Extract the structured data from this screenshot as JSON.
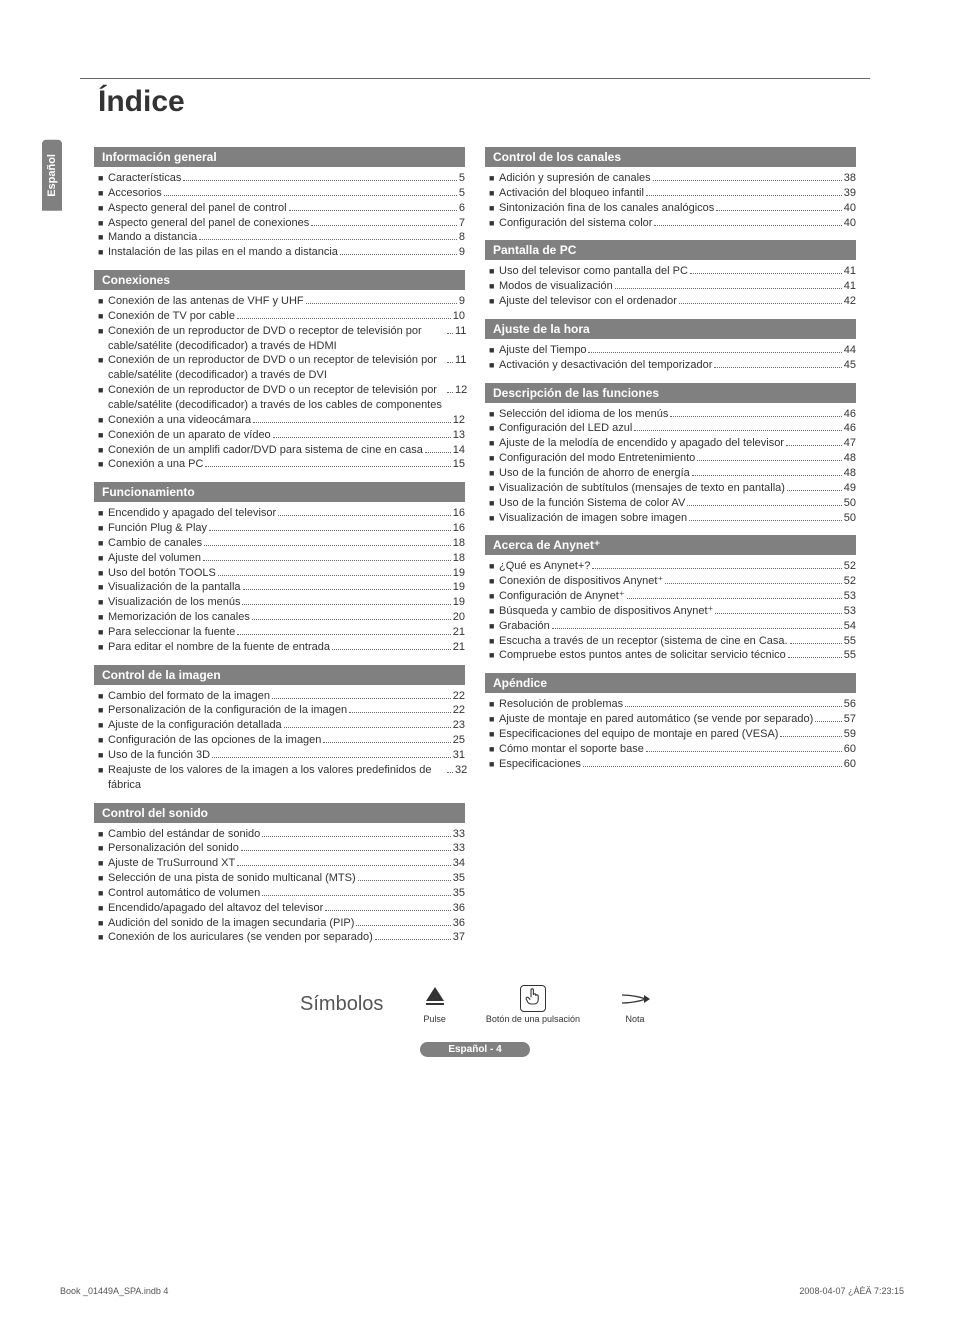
{
  "lang_tab": "Español",
  "title": "Índice",
  "colors": {
    "header_bg": "#808080",
    "header_fg": "#ffffff",
    "text": "#333333",
    "background": "#ffffff"
  },
  "left_sections": [
    {
      "title": "Información general",
      "items": [
        {
          "label": "Características",
          "page": "5"
        },
        {
          "label": "Accesorios",
          "page": "5"
        },
        {
          "label": "Aspecto general del panel de control",
          "page": "6"
        },
        {
          "label": "Aspecto general del panel de conexiones",
          "page": "7"
        },
        {
          "label": "Mando a distancia",
          "page": "8"
        },
        {
          "label": "Instalación de las pilas en el mando a distancia",
          "page": "9"
        }
      ]
    },
    {
      "title": "Conexiones",
      "items": [
        {
          "label": "Conexión de las antenas de VHF y UHF",
          "page": "9"
        },
        {
          "label": "Conexión de TV por cable",
          "page": "10"
        },
        {
          "label": "Conexión de un reproductor de DVD o receptor de televisión por cable/satélite (decodificador) a través de HDMI",
          "page": "11"
        },
        {
          "label": "Conexión de un reproductor de DVD o un receptor de televisión por cable/satélite (decodificador) a través de DVI",
          "page": "11"
        },
        {
          "label": "Conexión de un reproductor de DVD o un receptor de televisión por cable/satélite (decodificador) a través de los cables de componentes",
          "page": "12"
        },
        {
          "label": "Conexión a una videocámara",
          "page": "12"
        },
        {
          "label": "Conexión de un aparato de vídeo",
          "page": "13"
        },
        {
          "label": "Conexión de un amplifi cador/DVD para sistema de cine en casa",
          "page": "14"
        },
        {
          "label": "Conexión a una PC",
          "page": "15"
        }
      ]
    },
    {
      "title": "Funcionamiento",
      "items": [
        {
          "label": "Encendido y apagado del televisor",
          "page": "16"
        },
        {
          "label": "Función Plug & Play",
          "page": "16"
        },
        {
          "label": "Cambio de canales",
          "page": "18"
        },
        {
          "label": "Ajuste del volumen",
          "page": "18"
        },
        {
          "label": "Uso del botón TOOLS",
          "page": "19"
        },
        {
          "label": "Visualización de la pantalla",
          "page": "19"
        },
        {
          "label": "Visualización de los menús",
          "page": "19"
        },
        {
          "label": "Memorización de los canales",
          "page": "20"
        },
        {
          "label": "Para seleccionar la fuente",
          "page": "21"
        },
        {
          "label": "Para editar el nombre de la fuente de entrada",
          "page": "21"
        }
      ]
    },
    {
      "title": "Control de la imagen",
      "items": [
        {
          "label": "Cambio del formato de la imagen",
          "page": "22"
        },
        {
          "label": "Personalización de la configuración de la imagen",
          "page": "22"
        },
        {
          "label": "Ajuste de la configuración detallada",
          "page": "23"
        },
        {
          "label": "Configuración de las opciones de la imagen",
          "page": "25"
        },
        {
          "label": "Uso de la función 3D",
          "page": "31"
        },
        {
          "label": "Reajuste de los valores de la imagen a los valores predefinidos de fábrica",
          "page": "32"
        }
      ]
    },
    {
      "title": "Control del sonido",
      "items": [
        {
          "label": "Cambio del estándar de sonido",
          "page": "33"
        },
        {
          "label": "Personalización del sonido",
          "page": "33"
        },
        {
          "label": "Ajuste de TruSurround XT",
          "page": "34"
        },
        {
          "label": "Selección de una pista de sonido multicanal (MTS)",
          "page": "35"
        },
        {
          "label": "Control automático de volumen",
          "page": "35"
        },
        {
          "label": "Encendido/apagado del altavoz del televisor",
          "page": "36"
        },
        {
          "label": "Audición del sonido de la imagen secundaria (PIP)",
          "page": "36"
        },
        {
          "label": "Conexión de los auriculares (se venden por separado)",
          "page": "37"
        }
      ]
    }
  ],
  "right_sections": [
    {
      "title": "Control de los canales",
      "items": [
        {
          "label": "Adición y supresión de canales",
          "page": "38"
        },
        {
          "label": "Activación del bloqueo infantil",
          "page": "39"
        },
        {
          "label": "Sintonización fina de los canales analógicos",
          "page": "40"
        },
        {
          "label": "Configuración del sistema color",
          "page": "40"
        }
      ]
    },
    {
      "title": "Pantalla de PC",
      "items": [
        {
          "label": "Uso del televisor como pantalla del PC",
          "page": "41"
        },
        {
          "label": "Modos de visualización",
          "page": "41"
        },
        {
          "label": "Ajuste del televisor con el ordenador",
          "page": "42"
        }
      ]
    },
    {
      "title": "Ajuste de la hora",
      "items": [
        {
          "label": "Ajuste del Tiempo",
          "page": "44"
        },
        {
          "label": "Activación y desactivación del temporizador",
          "page": "45"
        }
      ]
    },
    {
      "title": "Descripción de las funciones",
      "items": [
        {
          "label": "Selección del idioma de los menús",
          "page": "46"
        },
        {
          "label": "Configuración del LED azul",
          "page": "46"
        },
        {
          "label": "Ajuste de la melodía de encendido y apagado del televisor",
          "page": "47"
        },
        {
          "label": "Configuración del modo Entretenimiento",
          "page": "48"
        },
        {
          "label": "Uso de la función de ahorro de energía",
          "page": "48"
        },
        {
          "label": "Visualización de subtítulos (mensajes de texto en pantalla)",
          "page": "49"
        },
        {
          "label": "Uso de la función Sistema de color AV",
          "page": "50"
        },
        {
          "label": "Visualización de imagen sobre imagen",
          "page": "50"
        }
      ]
    },
    {
      "title": "Acerca de Anynet⁺",
      "items": [
        {
          "label": "¿Qué es Anynet+?",
          "page": "52"
        },
        {
          "label": "Conexión de dispositivos Anynet⁺",
          "page": "52"
        },
        {
          "label": "Configuración de Anynet⁺",
          "page": "53"
        },
        {
          "label": "Búsqueda y cambio de dispositivos Anynet⁺",
          "page": "53"
        },
        {
          "label": "Grabación",
          "page": "54"
        },
        {
          "label": "Escucha a través de un receptor (sistema de cine en Casa.",
          "page": "55"
        },
        {
          "label": "Compruebe estos puntos antes de solicitar servicio técnico",
          "page": "55"
        }
      ]
    },
    {
      "title": "Apéndice",
      "items": [
        {
          "label": "Resolución de problemas",
          "page": "56"
        },
        {
          "label": "Ajuste de montaje en pared automático (se vende por separado)",
          "page": "57"
        },
        {
          "label": "Especificaciones del equipo de montaje en pared (VESA)",
          "page": "59"
        },
        {
          "label": "Cómo montar el soporte base",
          "page": "60"
        },
        {
          "label": "Especificaciones",
          "page": "60"
        }
      ]
    }
  ],
  "symbols_title": "Símbolos",
  "symbols": [
    {
      "label": "Pulse"
    },
    {
      "label": "Botón de una pulsación"
    },
    {
      "label": "Nota"
    }
  ],
  "page_badge": "Español - 4",
  "footer_left": "Book _01449A_SPA.indb   4",
  "footer_right": "2008-04-07   ¿ÀÈÄ 7:23:15"
}
